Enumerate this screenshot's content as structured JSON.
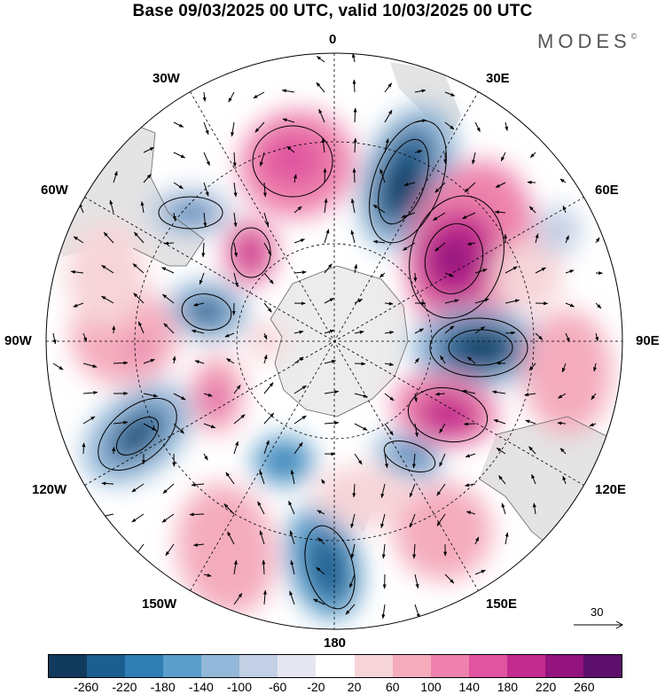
{
  "title": "Base 09/03/2025 00 UTC, valid 10/03/2025 00 UTC",
  "brand": "MODES",
  "brand_mark": "©",
  "longitude_labels": {
    "lon_0": "0",
    "lon_30e": "30E",
    "lon_60e": "60E",
    "lon_90e": "90E",
    "lon_120e": "120E",
    "lon_150e": "150E",
    "lon_180": "180",
    "lon_150w": "150W",
    "lon_120w": "120W",
    "lon_90w": "90W",
    "lon_60w": "60W",
    "lon_30w": "30W"
  },
  "reference_vector": "30",
  "colorbar": {
    "colors": [
      "#123a5c",
      "#1a5f8f",
      "#2f7fb5",
      "#5b9ecb",
      "#93b7d8",
      "#c3cfe4",
      "#e6e6f0",
      "#ffffff",
      "#f7d4d8",
      "#f4acbd",
      "#ee82ac",
      "#e054a0",
      "#c42b8e",
      "#93137f",
      "#5c106b"
    ],
    "ticks": [
      "-260",
      "-220",
      "-180",
      "-140",
      "-100",
      "-60",
      "-20",
      "20",
      "60",
      "100",
      "140",
      "180",
      "220",
      "260"
    ]
  },
  "projection": "south-polar-stereographic",
  "colors": {
    "land": "#e4e4e4",
    "antarctica": "#ececec",
    "coast": "#666666"
  }
}
